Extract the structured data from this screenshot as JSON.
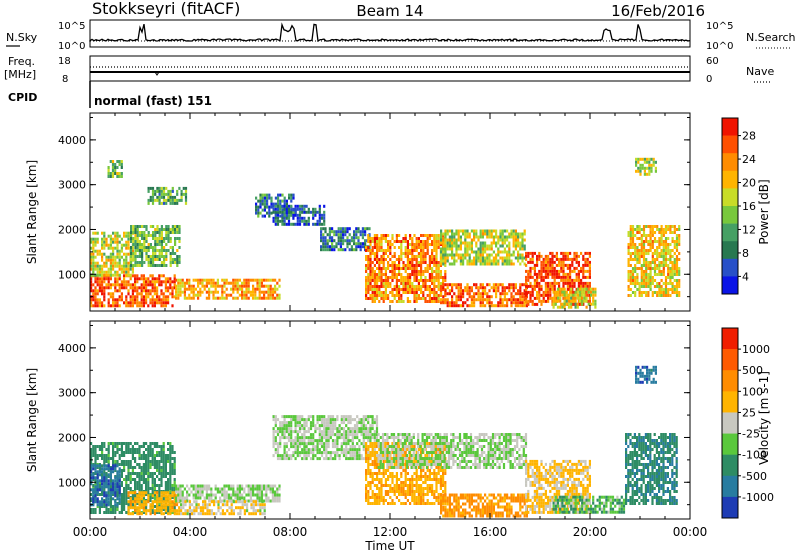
{
  "header": {
    "title": "Stokkseyri (fitACF)",
    "beam": "Beam 14",
    "date": "16/Feb/2016"
  },
  "panels": {
    "nsky_label": "N.Sky",
    "nsearch_label": "N.Search",
    "freq_label": "Freq.",
    "freq_unit": "[MHz]",
    "nave_label": "Nave",
    "cpid_label": "CPID",
    "cpid_value": "normal (fast) 151",
    "noise_ticks_left": [
      "10^5",
      "10^0"
    ],
    "noise_ticks_right": [
      "10^5",
      "10^0"
    ],
    "freq_ticks": [
      "18",
      "8"
    ],
    "nave_ticks": [
      "60",
      "0"
    ]
  },
  "chart_data": [
    {
      "type": "heatmap",
      "name": "power",
      "ylabel": "Slant Range [km]",
      "xlabel": "Time UT",
      "yticks": [
        "1000",
        "2000",
        "3000",
        "4000"
      ],
      "xticks": [
        "00:00",
        "04:00",
        "08:00",
        "12:00",
        "16:00",
        "20:00",
        "00:00"
      ],
      "xlim": [
        0,
        24
      ],
      "ylim": [
        180,
        4600
      ],
      "colorbar": {
        "label": "Power [dB]",
        "ticks": [
          "28",
          "24",
          "20",
          "16",
          "12",
          "8",
          "4"
        ],
        "colors": [
          "#0a14e6",
          "#2850c8",
          "#287850",
          "#46a064",
          "#78c83c",
          "#c8dc28",
          "#ffb400",
          "#ff8c00",
          "#ff5000",
          "#f01400"
        ]
      },
      "regions": [
        {
          "t": [
            0.0,
            3.4
          ],
          "r": [
            280,
            1000
          ],
          "v": 27
        },
        {
          "t": [
            0.0,
            1.7
          ],
          "r": [
            1000,
            1950
          ],
          "v": 18
        },
        {
          "t": [
            1.6,
            3.6
          ],
          "r": [
            1200,
            2100
          ],
          "v": 14
        },
        {
          "t": [
            2.3,
            3.8
          ],
          "r": [
            2600,
            2950
          ],
          "v": 12
        },
        {
          "t": [
            3.4,
            7.6
          ],
          "r": [
            480,
            900
          ],
          "v": 22
        },
        {
          "t": [
            6.6,
            8.2
          ],
          "r": [
            2300,
            2800
          ],
          "v": 8
        },
        {
          "t": [
            7.3,
            9.4
          ],
          "r": [
            2100,
            2550
          ],
          "v": 6
        },
        {
          "t": [
            9.2,
            11.2
          ],
          "r": [
            1550,
            2050
          ],
          "v": 8
        },
        {
          "t": [
            11.0,
            14.2
          ],
          "r": [
            400,
            1900
          ],
          "v": 24
        },
        {
          "t": [
            14.0,
            17.4
          ],
          "r": [
            1250,
            2000
          ],
          "v": 17
        },
        {
          "t": [
            14.0,
            17.5
          ],
          "r": [
            280,
            800
          ],
          "v": 26
        },
        {
          "t": [
            17.4,
            20.0
          ],
          "r": [
            300,
            1500
          ],
          "v": 28
        },
        {
          "t": [
            18.5,
            20.2
          ],
          "r": [
            250,
            700
          ],
          "v": 18
        },
        {
          "t": [
            21.5,
            23.6
          ],
          "r": [
            500,
            2100
          ],
          "v": 20
        },
        {
          "t": [
            21.8,
            22.6
          ],
          "r": [
            3250,
            3600
          ],
          "v": 16
        },
        {
          "t": [
            0.7,
            1.3
          ],
          "r": [
            3200,
            3550
          ],
          "v": 14
        }
      ]
    },
    {
      "type": "heatmap",
      "name": "velocity",
      "ylabel": "Slant Range [km]",
      "xlabel": "Time UT",
      "yticks": [
        "1000",
        "2000",
        "3000",
        "4000"
      ],
      "xticks": [
        "00:00",
        "04:00",
        "08:00",
        "12:00",
        "16:00",
        "20:00",
        "00:00"
      ],
      "xlim": [
        0,
        24
      ],
      "ylim": [
        180,
        4600
      ],
      "colorbar": {
        "label": "Velocity [m s-1]",
        "ticks": [
          "1000",
          "500",
          "100",
          "25",
          "-25",
          "-100",
          "-500",
          "-1000"
        ],
        "colors": [
          "#1e3cb4",
          "#287ca0",
          "#2e8c64",
          "#5ac83c",
          "#c8c8c0",
          "#ffb400",
          "#ff8c00",
          "#ff5a00",
          "#f01e00"
        ]
      },
      "regions": [
        {
          "t": [
            0.0,
            3.4
          ],
          "r": [
            350,
            1900
          ],
          "v": 150
        },
        {
          "t": [
            0.0,
            1.2
          ],
          "r": [
            500,
            1400
          ],
          "v": 600
        },
        {
          "t": [
            1.5,
            3.6
          ],
          "r": [
            300,
            800
          ],
          "v": -200
        },
        {
          "t": [
            3.4,
            7.6
          ],
          "r": [
            600,
            950
          ],
          "v": 0
        },
        {
          "t": [
            3.6,
            7.0
          ],
          "r": [
            300,
            600
          ],
          "v": -60
        },
        {
          "t": [
            7.3,
            11.5
          ],
          "r": [
            1500,
            2500
          ],
          "v": 0
        },
        {
          "t": [
            11.0,
            14.2
          ],
          "r": [
            500,
            1900
          ],
          "v": -250
        },
        {
          "t": [
            11.5,
            17.4
          ],
          "r": [
            1300,
            2100
          ],
          "v": 0
        },
        {
          "t": [
            14.0,
            17.5
          ],
          "r": [
            250,
            750
          ],
          "v": -400
        },
        {
          "t": [
            17.4,
            20.0
          ],
          "r": [
            350,
            1500
          ],
          "v": -80
        },
        {
          "t": [
            18.5,
            21.4
          ],
          "r": [
            300,
            700
          ],
          "v": 50
        },
        {
          "t": [
            21.4,
            23.5
          ],
          "r": [
            500,
            2100
          ],
          "v": 250
        },
        {
          "t": [
            21.8,
            22.6
          ],
          "r": [
            3250,
            3600
          ],
          "v": 600
        }
      ]
    }
  ],
  "colors": {
    "frame": "#000000",
    "background": "#ffffff"
  }
}
